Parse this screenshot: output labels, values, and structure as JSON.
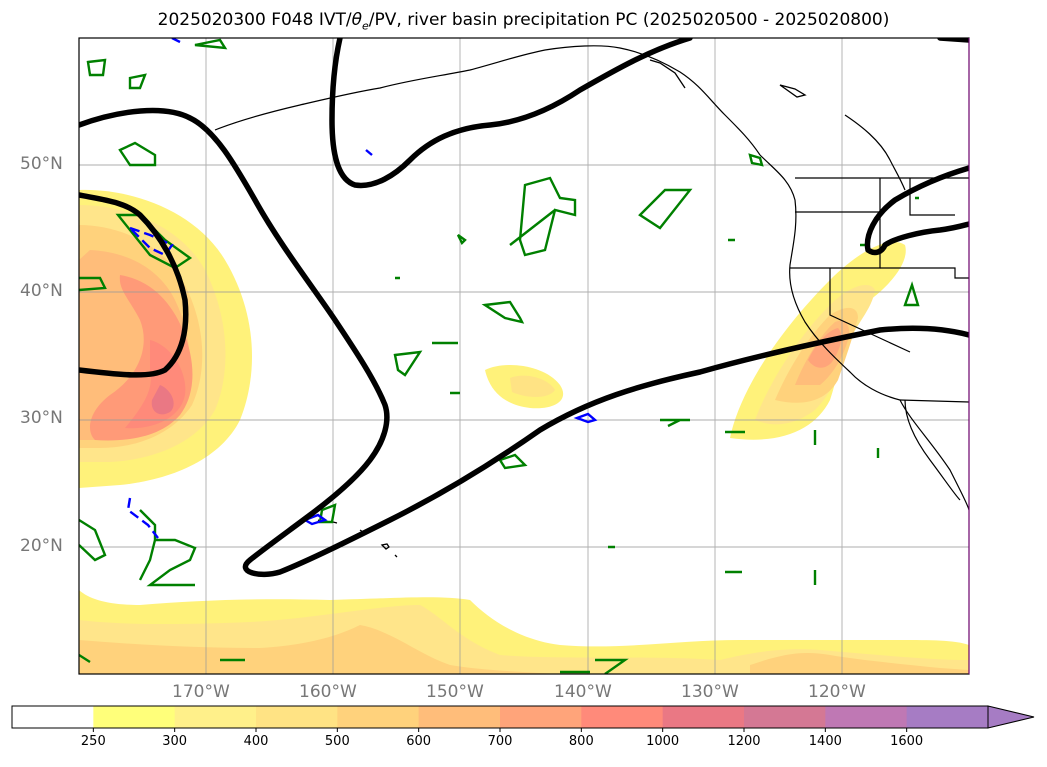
{
  "title": {
    "prefix": "2025020300 F048 IVT/",
    "theta": "θ",
    "sub": "e",
    "suffix": "/PV, river basin precipitation PC (2025020500 - 2025020800)"
  },
  "map": {
    "projection": "PlateCarree",
    "lon_range": [
      -180,
      -110
    ],
    "lat_range": [
      10,
      60
    ],
    "gridlines": true,
    "lat_ticks": [
      {
        "value": 20,
        "label": "20°N"
      },
      {
        "value": 30,
        "label": "30°N"
      },
      {
        "value": 40,
        "label": "40°N"
      },
      {
        "value": 50,
        "label": "50°N"
      }
    ],
    "lon_ticks": [
      {
        "value": -170,
        "label": "170°W"
      },
      {
        "value": -160,
        "label": "160°W"
      },
      {
        "value": -150,
        "label": "150°W"
      },
      {
        "value": -140,
        "label": "140°W"
      },
      {
        "value": -130,
        "label": "130°W"
      },
      {
        "value": -120,
        "label": "120°W"
      }
    ],
    "colors": {
      "pv_contour": "#000000",
      "theta_e_contour": "#008000",
      "negative_contour": "#0000ff",
      "coastline": "#000000"
    }
  },
  "colorbar": {
    "levels": [
      "250",
      "300",
      "400",
      "500",
      "600",
      "700",
      "800",
      "1000",
      "1200",
      "1400",
      "1600"
    ],
    "colors": [
      "#ffffff",
      "#ffff7a",
      "#fff08a",
      "#ffe384",
      "#ffd27c",
      "#ffbd7a",
      "#ffa47a",
      "#ff8a7a",
      "#ea7884",
      "#d47894",
      "#bf78b4",
      "#a67cc4"
    ],
    "extend": "max"
  }
}
